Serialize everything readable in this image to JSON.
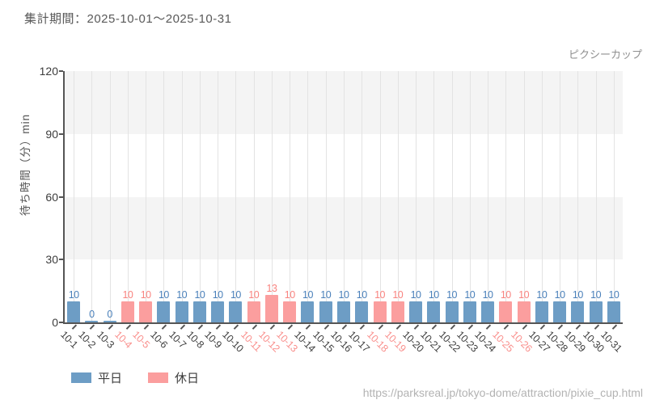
{
  "header": {
    "period_label": "集計期間：2025-10-01～2025-10-31"
  },
  "chart_data": {
    "type": "bar",
    "attraction_label": "ピクシーカップ",
    "ylabel": "待ち時間（分）min",
    "ylim": [
      0,
      120
    ],
    "yticks": [
      0,
      30,
      60,
      90,
      120
    ],
    "grid": "vertical gridlines per date; horizontal alternating gray bands (120-90 and 60-30 shaded)",
    "legend_position": "bottom-left",
    "categories": [
      "10-1",
      "10-2",
      "10-3",
      "10-4",
      "10-5",
      "10-6",
      "10-7",
      "10-8",
      "10-9",
      "10-10",
      "10-11",
      "10-12",
      "10-13",
      "10-14",
      "10-15",
      "10-16",
      "10-17",
      "10-18",
      "10-19",
      "10-20",
      "10-21",
      "10-22",
      "10-23",
      "10-24",
      "10-25",
      "10-26",
      "10-27",
      "10-28",
      "10-29",
      "10-30",
      "10-31"
    ],
    "values": [
      10,
      0,
      0,
      10,
      10,
      10,
      10,
      10,
      10,
      10,
      10,
      13,
      10,
      10,
      10,
      10,
      10,
      10,
      10,
      10,
      10,
      10,
      10,
      10,
      10,
      10,
      10,
      10,
      10,
      10,
      10
    ],
    "day_type": [
      "weekday",
      "weekday",
      "weekday",
      "holiday",
      "holiday",
      "weekday",
      "weekday",
      "weekday",
      "weekday",
      "weekday",
      "holiday",
      "holiday",
      "holiday",
      "weekday",
      "weekday",
      "weekday",
      "weekday",
      "holiday",
      "holiday",
      "weekday",
      "weekday",
      "weekday",
      "weekday",
      "weekday",
      "holiday",
      "holiday",
      "weekday",
      "weekday",
      "weekday",
      "weekday",
      "weekday"
    ],
    "series_colors": {
      "weekday": "#6d9dc5",
      "holiday": "#fb9e9e"
    },
    "value_label_colors": {
      "weekday": "#4a80ba",
      "holiday": "#f9837f"
    },
    "xtick_label_colors": {
      "weekday": "#3f3f3f",
      "holiday": "#f9908d"
    },
    "legend": [
      {
        "type": "weekday",
        "label": "平日"
      },
      {
        "type": "holiday",
        "label": "休日"
      }
    ]
  },
  "footer": {
    "url": "https://parksreal.jp/tokyo-dome/attraction/pixie_cup.html"
  }
}
